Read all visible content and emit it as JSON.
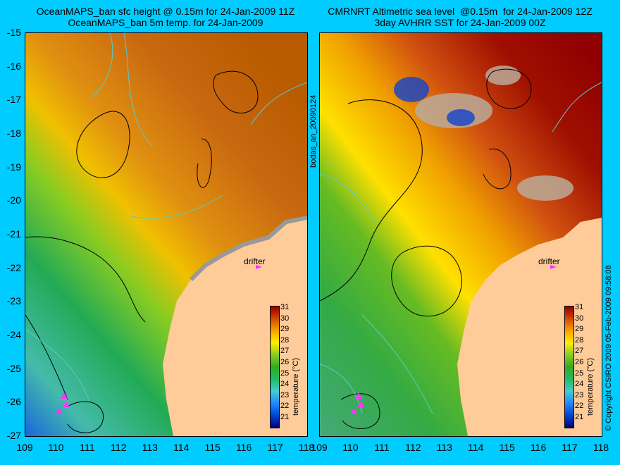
{
  "left_panel": {
    "title": "OceanMAPS_ban sfc height @ 0.15m for 24-Jan-2009 11Z\nOceanMAPS_ban 5m temp. for 24-Jan-2009"
  },
  "right_panel": {
    "title": "CMRNRT Altimetric sea level  @0.15m  for 24-Jan-2009 12Z\n3day AVHRR SST for 24-Jan-2009 00Z"
  },
  "run_label": "bodas_an_20090124",
  "copyright": "© Copyright CSIRO 2009   05-Feb-2009 09:58:08",
  "drifter_label": "drifter",
  "axes": {
    "lat_ticks": [
      "-15",
      "-16",
      "-17",
      "-18",
      "-19",
      "-20",
      "-21",
      "-22",
      "-23",
      "-24",
      "-25",
      "-26",
      "-27"
    ],
    "lon_ticks": [
      "109",
      "110",
      "111",
      "112",
      "113",
      "114",
      "115",
      "116",
      "117",
      "118"
    ]
  },
  "colorbar": {
    "title": "temperature (°C)",
    "ticks": [
      "31",
      "30",
      "29",
      "28",
      "27",
      "26",
      "25",
      "24",
      "23",
      "22",
      "21"
    ]
  }
}
